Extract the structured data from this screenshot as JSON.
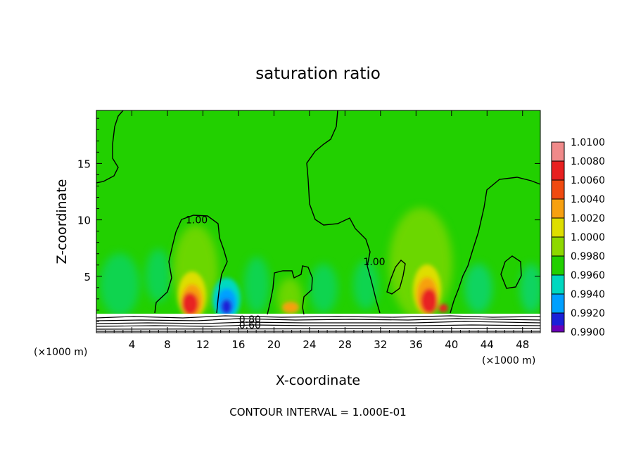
{
  "chart_data": {
    "type": "heatmap",
    "title": "saturation ratio",
    "xlabel": "X-coordinate",
    "ylabel": "Z-coordinate",
    "x_scale_note": "(×1000 m)",
    "xlim": [
      0,
      50
    ],
    "ylim": [
      0,
      19.7
    ],
    "x_ticks": [
      4,
      8,
      12,
      16,
      20,
      24,
      28,
      32,
      36,
      40,
      44,
      48
    ],
    "y_ticks": [
      5,
      10,
      15
    ],
    "colorbar": {
      "levels": [
        "1.0100",
        "1.0080",
        "1.0060",
        "1.0040",
        "1.0020",
        "1.0000",
        "0.9980",
        "0.9960",
        "0.9940",
        "0.9920",
        "0.9900"
      ],
      "colors": [
        "#f08a8a",
        "#e82020",
        "#f04a10",
        "#f7a010",
        "#dede00",
        "#8ed800",
        "#22d000",
        "#00d8c0",
        "#00a0ff",
        "#1a20d8",
        "#6a00b8"
      ]
    },
    "contour_labels": [
      {
        "text": "1.00",
        "x": 11.3,
        "z": 10.0
      },
      {
        "text": "1.00",
        "x": 31.3,
        "z": 6.3
      },
      {
        "text": "0.80",
        "x": 17.3,
        "z": 1.2
      },
      {
        "text": "0.60",
        "x": 17.3,
        "z": 0.7
      }
    ],
    "footer": "CONTOUR INTERVAL = 1.000E-01"
  }
}
